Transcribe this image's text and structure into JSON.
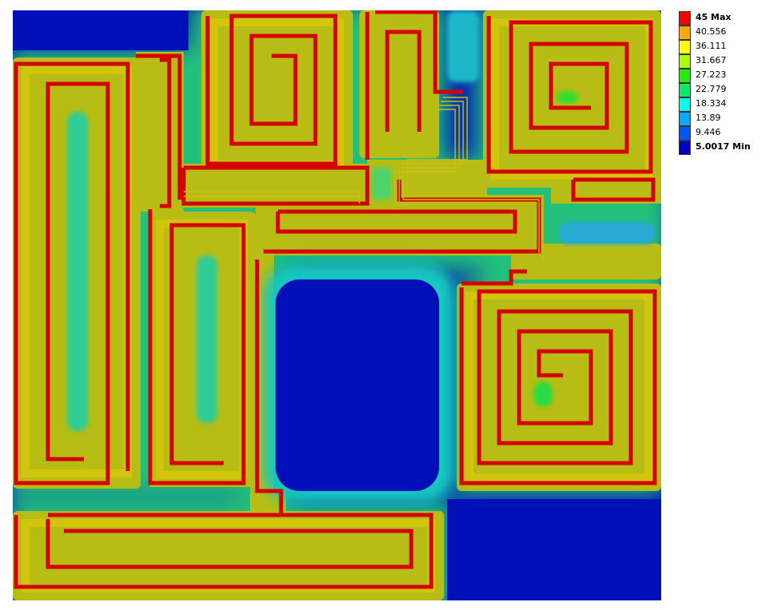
{
  "legend": {
    "entries": [
      {
        "label": "45 Max",
        "color": "#ff0000",
        "bold": true
      },
      {
        "label": "40.556",
        "color": "#ffaa00",
        "bold": false
      },
      {
        "label": "36.111",
        "color": "#ffff00",
        "bold": false
      },
      {
        "label": "31.667",
        "color": "#aaff00",
        "bold": false
      },
      {
        "label": "27.223",
        "color": "#22ee00",
        "bold": false
      },
      {
        "label": "22.779",
        "color": "#00ee66",
        "bold": false
      },
      {
        "label": "18.334",
        "color": "#00ffee",
        "bold": false
      },
      {
        "label": "13.89",
        "color": "#00aaff",
        "bold": false
      },
      {
        "label": "9.446",
        "color": "#0055ff",
        "bold": false
      },
      {
        "label": "5.0017 Min",
        "color": "#0000cc",
        "bold": true
      }
    ]
  },
  "field": {
    "colors": {
      "background": "#0010b8",
      "plate": "#b2bc16",
      "band_light": "#d2c80c",
      "trace": "#d20000",
      "warm_ring": "#f0a000",
      "cool_center": "#2ecc88"
    }
  }
}
